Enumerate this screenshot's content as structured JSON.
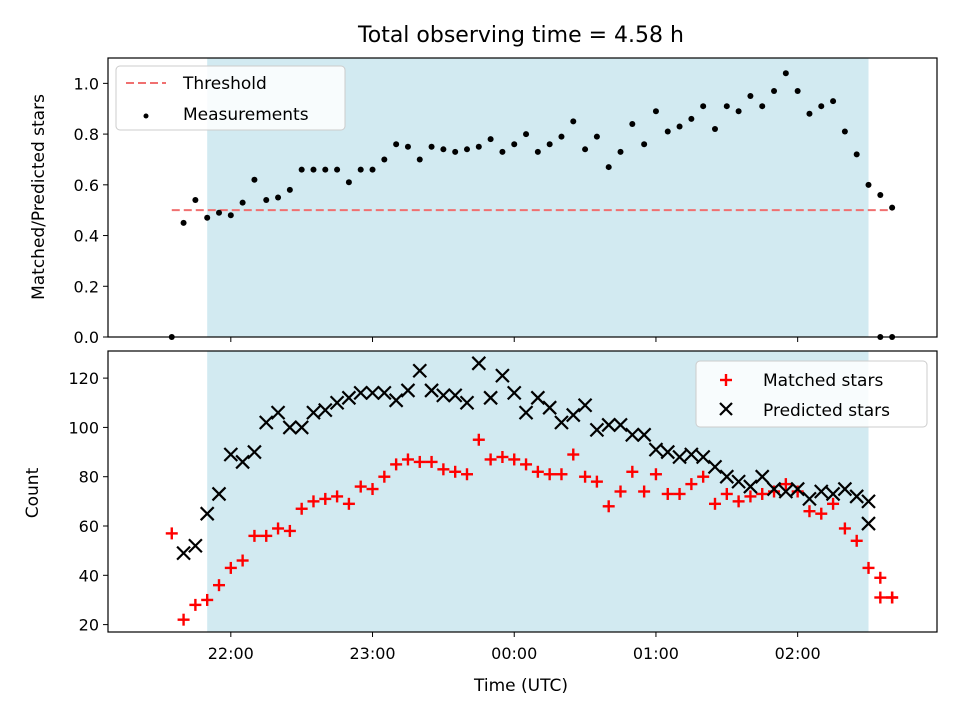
{
  "chart_data": [
    {
      "type": "scatter",
      "title": "Total observing time = 4.58 h",
      "xlabel": "",
      "ylabel": "Matched/Predicted stars",
      "ylim": [
        0,
        1.1
      ],
      "yticks": [
        "0.0",
        "0.2",
        "0.4",
        "0.6",
        "0.8",
        "1.0"
      ],
      "x_range_utc": [
        "21:08",
        "02:59"
      ],
      "shaded_window_utc": [
        "21:50",
        "02:30"
      ],
      "threshold": {
        "name": "Threshold",
        "value": 0.5,
        "x_utc": [
          "21:35",
          "02:40"
        ],
        "color": "#f07070",
        "style": "dashed"
      },
      "legend": {
        "position": "top-left",
        "entries": [
          "Threshold",
          "Measurements"
        ]
      },
      "series": [
        {
          "name": "Measurements",
          "color": "#000000",
          "marker": "dot",
          "x": [
            "21:35",
            "21:40",
            "21:45",
            "21:50",
            "21:55",
            "22:00",
            "22:05",
            "22:10",
            "22:15",
            "22:20",
            "22:25",
            "22:30",
            "22:35",
            "22:40",
            "22:45",
            "22:50",
            "22:55",
            "23:00",
            "23:05",
            "23:10",
            "23:15",
            "23:20",
            "23:25",
            "23:30",
            "23:35",
            "23:40",
            "23:45",
            "23:50",
            "23:55",
            "00:00",
            "00:05",
            "00:10",
            "00:15",
            "00:20",
            "00:25",
            "00:30",
            "00:35",
            "00:40",
            "00:45",
            "00:50",
            "00:55",
            "01:00",
            "01:05",
            "01:10",
            "01:15",
            "01:20",
            "01:25",
            "01:30",
            "01:35",
            "01:40",
            "01:45",
            "01:50",
            "01:55",
            "02:00",
            "02:05",
            "02:10",
            "02:15",
            "02:20",
            "02:25",
            "02:30",
            "02:35",
            "02:40"
          ],
          "y": [
            0.0,
            0.45,
            0.54,
            0.47,
            0.49,
            0.48,
            0.53,
            0.62,
            0.54,
            0.55,
            0.58,
            0.66,
            0.66,
            0.66,
            0.66,
            0.61,
            0.66,
            0.66,
            0.7,
            0.76,
            0.75,
            0.7,
            0.75,
            0.74,
            0.73,
            0.74,
            0.75,
            0.78,
            0.73,
            0.76,
            0.8,
            0.73,
            0.76,
            0.79,
            0.85,
            0.74,
            0.79,
            0.67,
            0.73,
            0.84,
            0.76,
            0.89,
            0.81,
            0.83,
            0.86,
            0.91,
            0.82,
            0.91,
            0.89,
            0.95,
            0.91,
            0.97,
            1.04,
            0.97,
            0.88,
            0.91,
            0.93,
            0.81,
            0.72,
            0.6,
            0.56,
            0.51
          ]
        }
      ],
      "extra_points": {
        "x": [
          "02:35",
          "02:40"
        ],
        "y": [
          0.0,
          0.0
        ]
      }
    },
    {
      "type": "scatter",
      "title": "",
      "xlabel": "Time (UTC)",
      "ylabel": "Count",
      "ylim": [
        17,
        131
      ],
      "yticks": [
        "20",
        "40",
        "60",
        "80",
        "100",
        "120"
      ],
      "xticks": [
        "22:00",
        "23:00",
        "00:00",
        "01:00",
        "02:00"
      ],
      "x_range_utc": [
        "21:08",
        "02:59"
      ],
      "shaded_window_utc": [
        "21:50",
        "02:30"
      ],
      "legend": {
        "position": "top-right",
        "entries": [
          "Matched stars",
          "Predicted stars"
        ]
      },
      "series": [
        {
          "name": "Matched stars",
          "color": "#ff0000",
          "marker": "plus",
          "x": [
            "21:35",
            "21:40",
            "21:45",
            "21:50",
            "21:55",
            "22:00",
            "22:05",
            "22:10",
            "22:15",
            "22:20",
            "22:25",
            "22:30",
            "22:35",
            "22:40",
            "22:45",
            "22:50",
            "22:55",
            "23:00",
            "23:05",
            "23:10",
            "23:15",
            "23:20",
            "23:25",
            "23:30",
            "23:35",
            "23:40",
            "23:45",
            "23:50",
            "23:55",
            "00:00",
            "00:05",
            "00:10",
            "00:15",
            "00:20",
            "00:25",
            "00:30",
            "00:35",
            "00:40",
            "00:45",
            "00:50",
            "00:55",
            "01:00",
            "01:05",
            "01:10",
            "01:15",
            "01:20",
            "01:25",
            "01:30",
            "01:35",
            "01:40",
            "01:45",
            "01:50",
            "01:55",
            "02:00",
            "02:05",
            "02:10",
            "02:15",
            "02:20",
            "02:25",
            "02:30",
            "02:35",
            "02:40"
          ],
          "y": [
            57,
            22,
            28,
            30,
            36,
            43,
            46,
            56,
            56,
            59,
            58,
            67,
            70,
            71,
            72,
            69,
            76,
            75,
            80,
            85,
            87,
            86,
            86,
            83,
            82,
            81,
            95,
            87,
            88,
            87,
            85,
            82,
            81,
            81,
            89,
            80,
            78,
            68,
            74,
            82,
            74,
            81,
            73,
            73,
            77,
            80,
            69,
            73,
            70,
            72,
            73,
            74,
            77,
            74,
            66,
            65,
            69,
            59,
            54,
            43,
            39,
            31
          ],
          "extra": {
            "x": [
              "02:35",
              "02:40"
            ],
            "y": [
              31,
              31
            ]
          }
        },
        {
          "name": "Predicted stars",
          "color": "#000000",
          "marker": "x",
          "x": [
            "21:40",
            "21:45",
            "21:50",
            "21:55",
            "22:00",
            "22:05",
            "22:10",
            "22:15",
            "22:20",
            "22:25",
            "22:30",
            "22:35",
            "22:40",
            "22:45",
            "22:50",
            "22:55",
            "23:00",
            "23:05",
            "23:10",
            "23:15",
            "23:20",
            "23:25",
            "23:30",
            "23:35",
            "23:40",
            "23:45",
            "23:50",
            "23:55",
            "00:00",
            "00:05",
            "00:10",
            "00:15",
            "00:20",
            "00:25",
            "00:30",
            "00:35",
            "00:40",
            "00:45",
            "00:50",
            "00:55",
            "01:00",
            "01:05",
            "01:10",
            "01:15",
            "01:20",
            "01:25",
            "01:30",
            "01:35",
            "01:40",
            "01:45",
            "01:50",
            "01:55",
            "02:00",
            "02:05",
            "02:10",
            "02:15",
            "02:20",
            "02:25",
            "02:30"
          ],
          "y": [
            49,
            52,
            65,
            73,
            89,
            86,
            90,
            102,
            106,
            100,
            100,
            106,
            107,
            110,
            112,
            114,
            114,
            114,
            111,
            115,
            123,
            115,
            113,
            113,
            110,
            126,
            112,
            121,
            114,
            106,
            112,
            108,
            102,
            105,
            109,
            99,
            101,
            101,
            97,
            97,
            91,
            90,
            88,
            89,
            88,
            84,
            80,
            78,
            76,
            80,
            75,
            74,
            75,
            71,
            74,
            73,
            75,
            72,
            70
          ],
          "extra_x": [
            "02:30"
          ],
          "extra_y": [
            61
          ]
        }
      ]
    }
  ]
}
